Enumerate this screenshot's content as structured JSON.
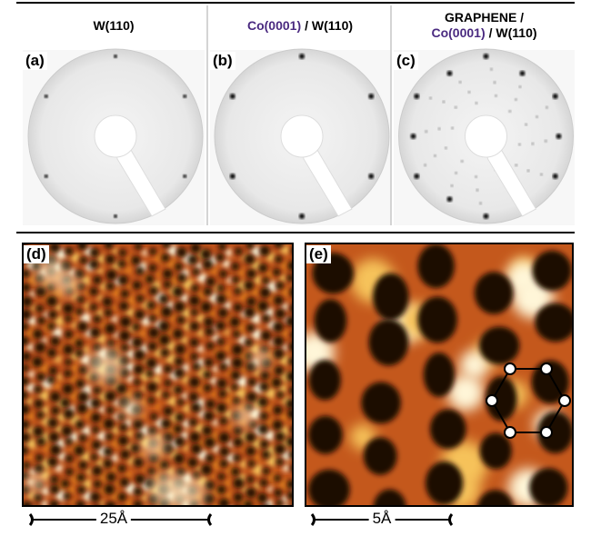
{
  "panels": [
    {
      "label": "(a)",
      "header": [
        [
          {
            "text": "W(110)"
          }
        ]
      ]
    },
    {
      "label": "(b)",
      "header": [
        [
          {
            "text": "Co(0001)",
            "color": "#4a2a80"
          },
          {
            "text": "/ W(110)"
          }
        ]
      ]
    },
    {
      "label": "(c)",
      "header": [
        [
          {
            "text": "GRAPHENE /"
          }
        ],
        [
          {
            "text": "Co(0001)",
            "color": "#4a2a80"
          },
          {
            "text": "/ W(110)"
          }
        ]
      ]
    }
  ],
  "stm": [
    {
      "label": "(d)",
      "scale_bar": "25Å"
    },
    {
      "label": "(e)",
      "scale_bar": "5Å"
    }
  ]
}
